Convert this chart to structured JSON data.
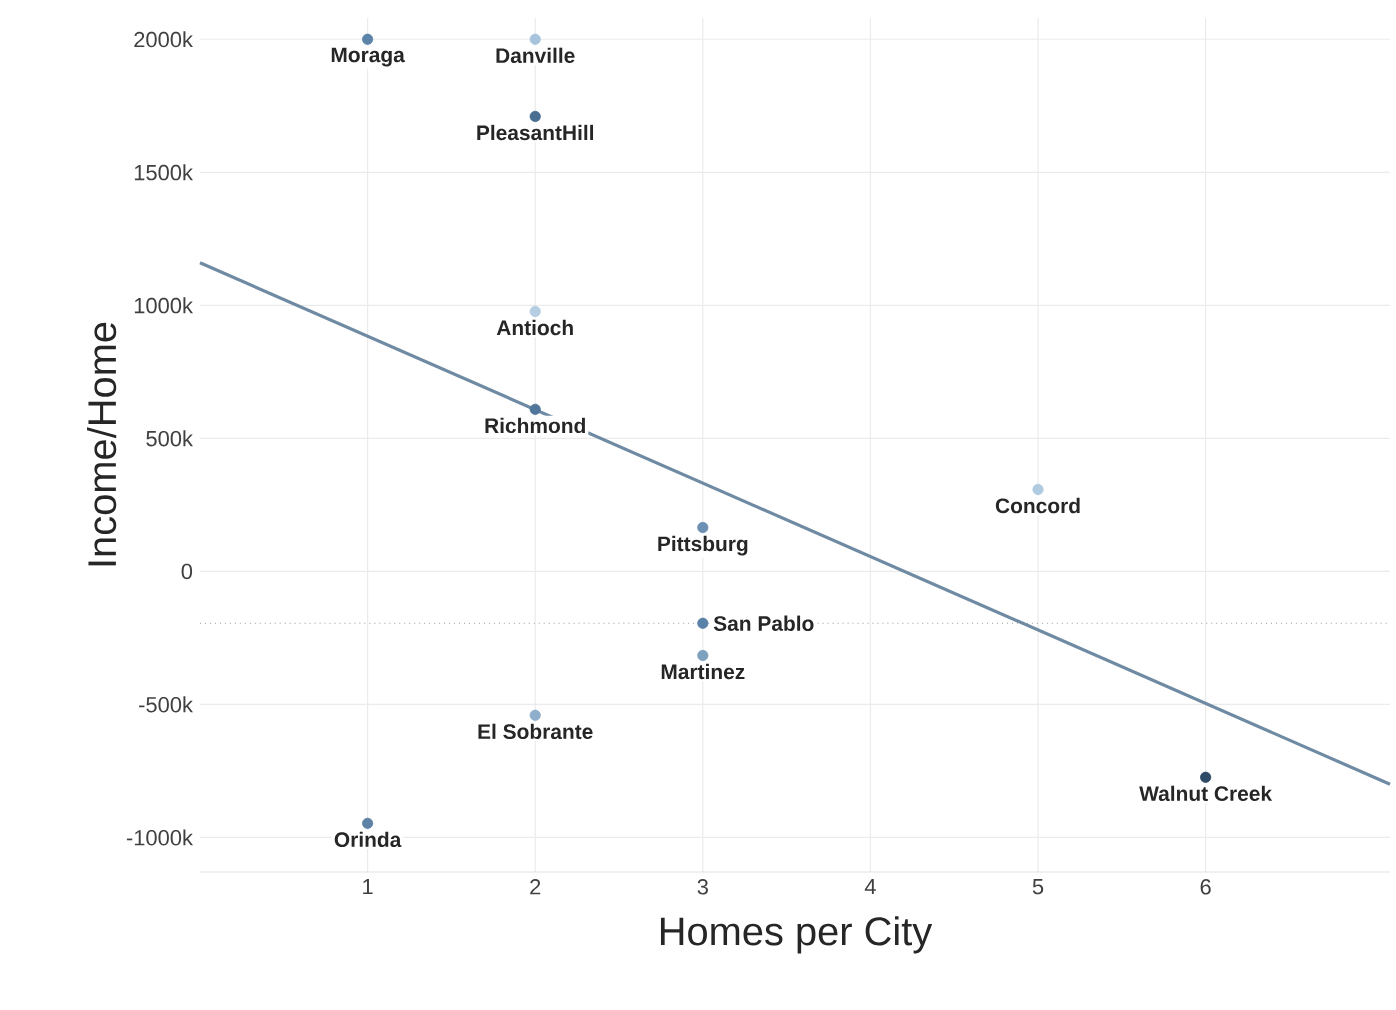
{
  "chart_data": {
    "type": "scatter",
    "xlabel": "Homes per City",
    "ylabel": "Income/Home",
    "x": [
      1,
      2,
      2,
      2,
      2,
      5,
      3,
      3,
      3,
      2,
      1,
      6
    ],
    "series": [
      {
        "marker": "circle",
        "values": [
          2000,
          2000,
          1710,
          977,
          609,
          308,
          165,
          -195,
          -316,
          -541,
          -947,
          -774
        ],
        "colors": [
          "#5b84a8",
          "#a8c4dc",
          "#4a6f93",
          "#b5cde2",
          "#4f759a",
          "#b0cbe0",
          "#6b90b3",
          "#5a82a8",
          "#7fa1c0",
          "#8eaecb",
          "#5d82a6",
          "#2e4a66"
        ]
      },
      {
        "type": "line",
        "x": [
          0,
          7.1
        ],
        "values": [
          1160,
          -800
        ],
        "color": "#6f8aa3",
        "marker": "none"
      }
    ],
    "annotations": [
      {
        "text": "Moraga",
        "x": 1,
        "y": 2000
      },
      {
        "text": "Danville",
        "x": 2,
        "y": 2000
      },
      {
        "text": "PleasantHill",
        "x": 2,
        "y": 1710
      },
      {
        "text": "Antioch",
        "x": 2,
        "y": 977
      },
      {
        "text": "Richmond",
        "x": 2,
        "y": 609
      },
      {
        "text": "Concord",
        "x": 5,
        "y": 308
      },
      {
        "text": "Pittsburg",
        "x": 3,
        "y": 165
      },
      {
        "text": "San Pablo",
        "x": 3,
        "y": -195
      },
      {
        "text": "Martinez",
        "x": 3,
        "y": -316
      },
      {
        "text": "El Sobrante",
        "x": 2,
        "y": -541
      },
      {
        "text": "Orinda",
        "x": 1,
        "y": -947
      },
      {
        "text": "Walnut Creek",
        "x": 6,
        "y": -774
      }
    ],
    "ref_lines": [
      {
        "axis": "y",
        "value": -195,
        "color": "#999999",
        "line_style": "dotted"
      }
    ],
    "xlim": [
      0,
      7.1
    ],
    "ylim": [
      -1130,
      2080
    ],
    "xticks": [
      1,
      2,
      3,
      4,
      5,
      6
    ],
    "yticks": [
      {
        "value": -1000,
        "label": "-1000k"
      },
      {
        "value": -500,
        "label": "-500k"
      },
      0,
      {
        "value": 500,
        "label": "500k"
      },
      {
        "value": 1000,
        "label": "1000k"
      },
      {
        "value": 1500,
        "label": "1500k"
      },
      {
        "value": 2000,
        "label": "2000k"
      }
    ],
    "grid": true
  }
}
